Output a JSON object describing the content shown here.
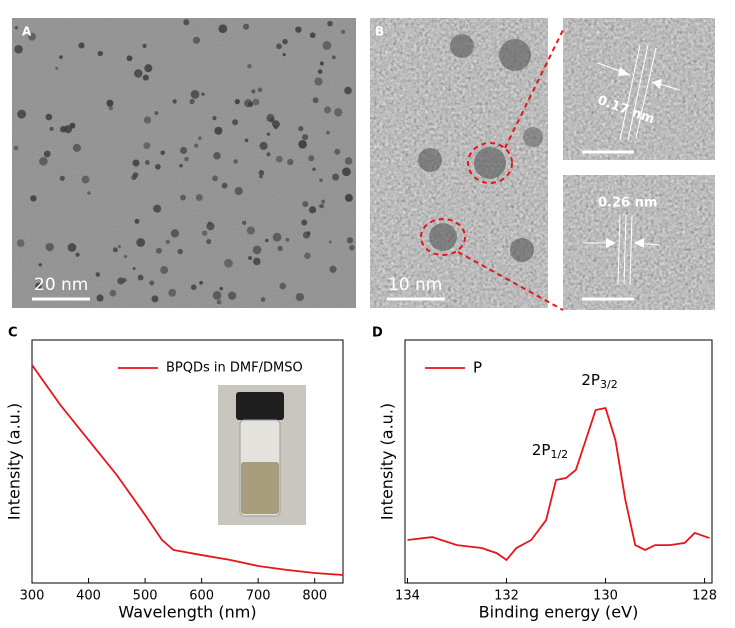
{
  "figure": {
    "panels": [
      {
        "label": "A",
        "scale_bar": "20 nm"
      },
      {
        "label": "B",
        "scale_bar": "10 nm",
        "insets": [
          {
            "annotation": "0.17 nm"
          },
          {
            "annotation": "0.26 nm"
          }
        ]
      }
    ]
  },
  "chart_data": [
    {
      "type": "line",
      "panel_label": "C",
      "xlabel": "Wavelength (nm)",
      "ylabel": "Intensity (a.u.)",
      "x": [
        300,
        350,
        400,
        450,
        500,
        530,
        550,
        600,
        650,
        700,
        750,
        800,
        850
      ],
      "series": [
        {
          "name": "BPQDs in DMF/DMSO",
          "color": "#e8141b",
          "values": [
            89.7,
            73.3,
            58.8,
            44.4,
            28,
            17.7,
            13.6,
            11.5,
            9.5,
            7,
            5.4,
            4.1,
            3.3
          ]
        }
      ],
      "xlim": [
        300,
        850
      ],
      "xticks": [
        300,
        400,
        500,
        600,
        700,
        800
      ],
      "ylim": [
        0,
        100
      ],
      "legend": "upper right"
    },
    {
      "type": "line",
      "panel_label": "D",
      "xlabel": "Binding energy (eV)",
      "ylabel": "Intensity (a.u.)",
      "x": [
        134.0,
        133.5,
        133.0,
        132.5,
        132.2,
        132.0,
        131.8,
        131.5,
        131.2,
        131.0,
        130.8,
        130.6,
        130.4,
        130.2,
        130.0,
        129.8,
        129.6,
        129.4,
        129.2,
        129.0,
        128.7,
        128.4,
        128.2,
        127.9
      ],
      "series": [
        {
          "name": "P",
          "color": "#e8141b",
          "values": [
            17.7,
            18.9,
            15.6,
            14.4,
            12.3,
            9.5,
            14.4,
            17.7,
            25.9,
            42.4,
            43.2,
            46.5,
            58.8,
            71.2,
            72,
            58.8,
            34.2,
            15.6,
            13.6,
            15.6,
            15.6,
            16.5,
            20.6,
            18.5
          ]
        }
      ],
      "xlim": [
        134.05,
        127.85
      ],
      "xticks": [
        134,
        132,
        130,
        128
      ],
      "ylim": [
        0,
        100
      ],
      "legend": "upper left",
      "annotations": [
        {
          "x": 131.0,
          "y": 43.2,
          "label": "2P",
          "subscript": "1/2"
        },
        {
          "x": 130.0,
          "y": 72,
          "label": "2P",
          "subscript": "3/2"
        }
      ]
    }
  ]
}
